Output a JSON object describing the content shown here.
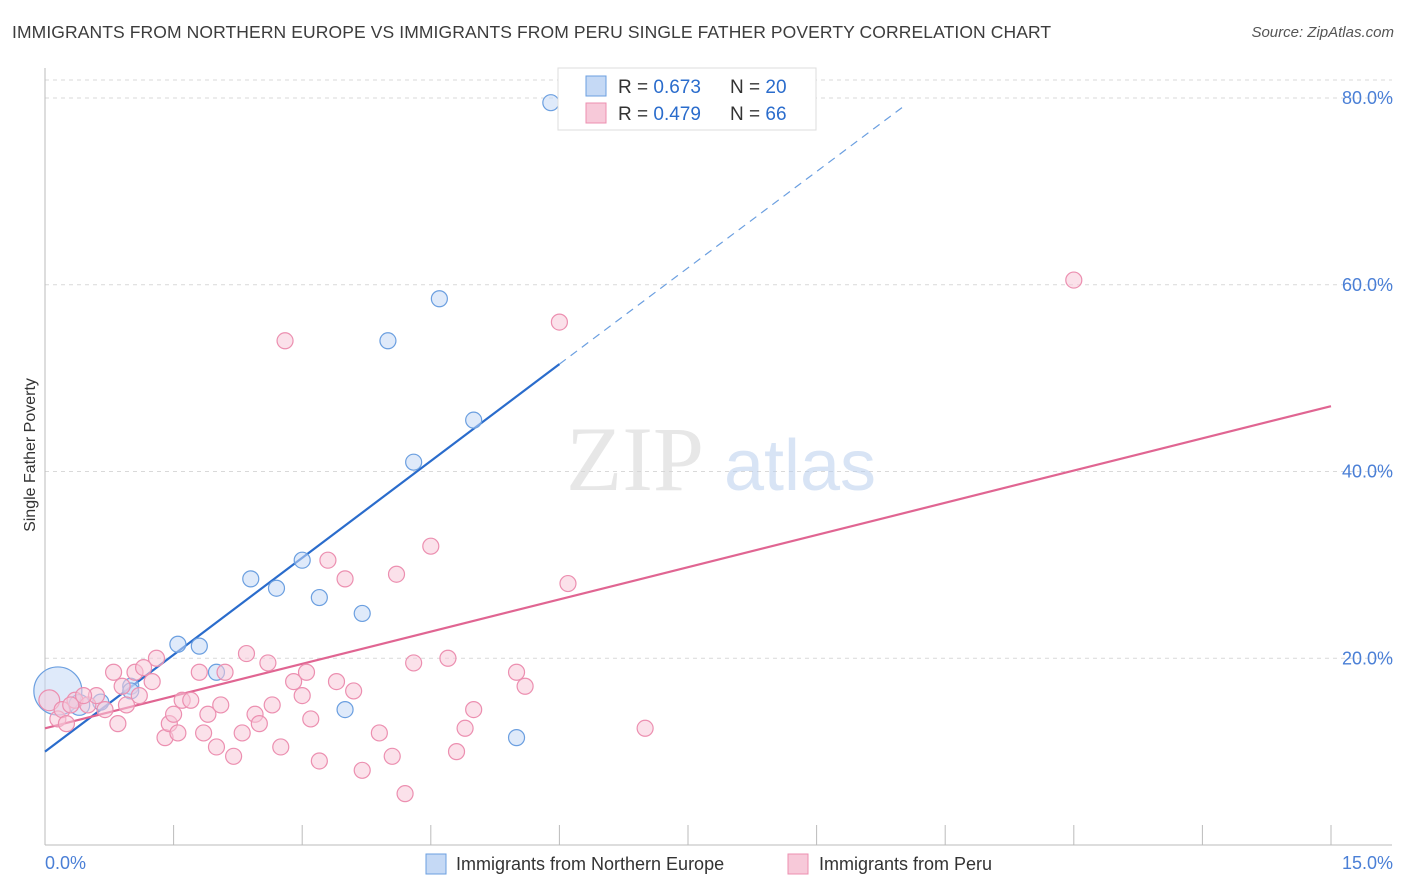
{
  "header": {
    "title": "IMMIGRANTS FROM NORTHERN EUROPE VS IMMIGRANTS FROM PERU SINGLE FATHER POVERTY CORRELATION CHART",
    "source": "Source: ZipAtlas.com"
  },
  "colors": {
    "blue": "#6b9fe0",
    "blue_fill": "#c5d9f5",
    "blue_line": "#2a6ccc",
    "pink": "#ec8fb0",
    "pink_fill": "#f7c9d9",
    "pink_line": "#e06592",
    "tick_label": "#4a7fd6",
    "grid": "#d9d9d9"
  },
  "chart_data": {
    "type": "scatter",
    "title": "IMMIGRANTS FROM NORTHERN EUROPE VS IMMIGRANTS FROM PERU SINGLE FATHER POVERTY CORRELATION CHART",
    "xlabel": "",
    "ylabel": "Single Father Poverty",
    "xlim": [
      0,
      15
    ],
    "ylim": [
      0,
      80
    ],
    "x_tick_labels": [
      "0.0%",
      "15.0%"
    ],
    "y_ticks": [
      20,
      40,
      60,
      80
    ],
    "y_tick_labels": [
      "20.0%",
      "40.0%",
      "60.0%",
      "80.0%"
    ],
    "watermark": {
      "part1": "ZIP",
      "part2": "atlas"
    },
    "legend": {
      "entries": [
        {
          "r_label": "R = ",
          "r_value": "0.673",
          "n_label": "N = ",
          "n_value": "20"
        },
        {
          "r_label": "R = ",
          "r_value": "0.479",
          "n_label": "N = ",
          "n_value": "66"
        }
      ]
    },
    "series": [
      {
        "name": "Immigrants from Northern Europe",
        "color": "blue",
        "points": [
          [
            0.15,
            16.5,
            3
          ],
          [
            0.4,
            15.0,
            1.3
          ],
          [
            0.65,
            15.3,
            1
          ],
          [
            1.0,
            17.0,
            1
          ],
          [
            1.55,
            21.5,
            1
          ],
          [
            1.8,
            21.3,
            1
          ],
          [
            2.0,
            18.5,
            1
          ],
          [
            2.4,
            28.5,
            1
          ],
          [
            2.7,
            27.5,
            1
          ],
          [
            3.0,
            30.5,
            1
          ],
          [
            3.2,
            26.5,
            1
          ],
          [
            3.5,
            14.5,
            1
          ],
          [
            3.7,
            24.8,
            1
          ],
          [
            4.0,
            54.0,
            1
          ],
          [
            4.3,
            41.0,
            1
          ],
          [
            4.6,
            58.5,
            1
          ],
          [
            5.0,
            45.5,
            1
          ],
          [
            5.5,
            11.5,
            1
          ],
          [
            5.9,
            79.5,
            1
          ],
          [
            1.0,
            16.5,
            1
          ]
        ],
        "trend": {
          "x0": 0,
          "y0": 10.0,
          "x1": 6.0,
          "y1": 51.5,
          "dash_x1": 10.0,
          "dash_y1": 79.0
        }
      },
      {
        "name": "Immigrants from Peru",
        "color": "pink",
        "points": [
          [
            0.05,
            15.5,
            1.3
          ],
          [
            0.15,
            13.5,
            1
          ],
          [
            0.2,
            14.5,
            1
          ],
          [
            0.35,
            15.5,
            1
          ],
          [
            0.5,
            15.0,
            1
          ],
          [
            0.6,
            16.0,
            1
          ],
          [
            0.8,
            18.5,
            1
          ],
          [
            0.85,
            13.0,
            1
          ],
          [
            0.9,
            17.0,
            1
          ],
          [
            1.05,
            18.5,
            1
          ],
          [
            1.1,
            16.0,
            1
          ],
          [
            1.25,
            17.5,
            1
          ],
          [
            1.3,
            20.0,
            1
          ],
          [
            1.4,
            11.5,
            1
          ],
          [
            1.45,
            13.0,
            1
          ],
          [
            1.55,
            12.0,
            1
          ],
          [
            1.6,
            15.5,
            1
          ],
          [
            1.7,
            15.5,
            1
          ],
          [
            1.8,
            18.5,
            1
          ],
          [
            1.85,
            12.0,
            1
          ],
          [
            1.9,
            14.0,
            1
          ],
          [
            2.0,
            10.5,
            1
          ],
          [
            2.1,
            18.5,
            1
          ],
          [
            2.2,
            9.5,
            1
          ],
          [
            2.3,
            12.0,
            1
          ],
          [
            2.35,
            20.5,
            1
          ],
          [
            2.45,
            14.0,
            1
          ],
          [
            2.5,
            13.0,
            1
          ],
          [
            2.6,
            19.5,
            1
          ],
          [
            2.65,
            15.0,
            1
          ],
          [
            2.75,
            10.5,
            1
          ],
          [
            2.8,
            54.0,
            1
          ],
          [
            2.9,
            17.5,
            1
          ],
          [
            3.0,
            16.0,
            1
          ],
          [
            3.05,
            18.5,
            1
          ],
          [
            3.1,
            13.5,
            1
          ],
          [
            3.2,
            9.0,
            1
          ],
          [
            3.3,
            30.5,
            1
          ],
          [
            3.4,
            17.5,
            1
          ],
          [
            3.5,
            28.5,
            1
          ],
          [
            3.6,
            16.5,
            1
          ],
          [
            3.7,
            8.0,
            1
          ],
          [
            3.9,
            12.0,
            1
          ],
          [
            4.05,
            9.5,
            1
          ],
          [
            4.1,
            29.0,
            1
          ],
          [
            4.2,
            5.5,
            1
          ],
          [
            4.3,
            19.5,
            1
          ],
          [
            4.5,
            32.0,
            1
          ],
          [
            4.7,
            20.0,
            1
          ],
          [
            4.8,
            10.0,
            1
          ],
          [
            4.9,
            12.5,
            1
          ],
          [
            5.0,
            14.5,
            1
          ],
          [
            5.5,
            18.5,
            1
          ],
          [
            5.6,
            17.0,
            1
          ],
          [
            6.0,
            56.0,
            1
          ],
          [
            6.1,
            28.0,
            1
          ],
          [
            7.0,
            12.5,
            1
          ],
          [
            12.0,
            60.5,
            1
          ],
          [
            0.3,
            15.0,
            1
          ],
          [
            0.45,
            16.0,
            1
          ],
          [
            0.7,
            14.5,
            1
          ],
          [
            1.15,
            19.0,
            1
          ],
          [
            1.5,
            14.0,
            1
          ],
          [
            2.05,
            15.0,
            1
          ],
          [
            0.25,
            13.0,
            1
          ],
          [
            0.95,
            15.0,
            1
          ]
        ],
        "trend": {
          "x0": 0,
          "y0": 12.5,
          "x1": 15.0,
          "y1": 47.0
        }
      }
    ]
  }
}
